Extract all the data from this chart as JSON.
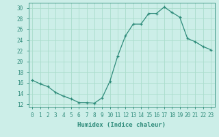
{
  "x": [
    0,
    1,
    2,
    3,
    4,
    5,
    6,
    7,
    8,
    9,
    10,
    11,
    12,
    13,
    14,
    15,
    16,
    17,
    18,
    19,
    20,
    21,
    22,
    23
  ],
  "y": [
    16.5,
    15.8,
    15.3,
    14.2,
    13.5,
    13.0,
    12.3,
    12.3,
    12.2,
    13.2,
    16.3,
    21.0,
    24.8,
    27.0,
    27.0,
    29.0,
    29.0,
    30.2,
    29.2,
    28.3,
    24.3,
    23.7,
    22.8,
    22.2
  ],
  "line_color": "#2e8b7a",
  "marker": "+",
  "marker_color": "#2e8b7a",
  "bg_color": "#cceee8",
  "grid_color": "#aaddcc",
  "xlabel": "Humidex (Indice chaleur)",
  "ylabel_ticks": [
    12,
    14,
    16,
    18,
    20,
    22,
    24,
    26,
    28,
    30
  ],
  "xlim": [
    -0.5,
    23.5
  ],
  "ylim": [
    11.5,
    31.0
  ],
  "xtick_labels": [
    "0",
    "1",
    "2",
    "3",
    "4",
    "5",
    "6",
    "7",
    "8",
    "9",
    "10",
    "11",
    "12",
    "13",
    "14",
    "15",
    "16",
    "17",
    "18",
    "19",
    "20",
    "21",
    "22",
    "23"
  ],
  "tick_color": "#2e8b7a",
  "tick_fontsize": 5.5,
  "xlabel_fontsize": 6.5
}
